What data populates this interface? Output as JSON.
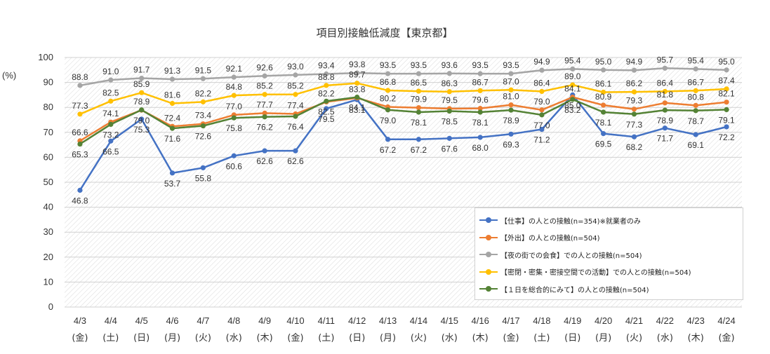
{
  "chart_data": {
    "type": "line",
    "title": "項目別接触低減度【東京都】",
    "ylabel": "(%)",
    "ylim": [
      0,
      100
    ],
    "yticks": [
      0,
      10,
      20,
      30,
      40,
      50,
      60,
      70,
      80,
      90,
      100
    ],
    "categories": [
      "4/3",
      "4/4",
      "4/5",
      "4/6",
      "4/7",
      "4/8",
      "4/9",
      "4/10",
      "4/11",
      "4/12",
      "4/13",
      "4/14",
      "4/15",
      "4/16",
      "4/17",
      "4/18",
      "4/19",
      "4/20",
      "4/21",
      "4/22",
      "4/23",
      "4/24"
    ],
    "weekdays": [
      "(金)",
      "(土)",
      "(日)",
      "(月)",
      "(火)",
      "(水)",
      "(木)",
      "(金)",
      "(土)",
      "(日)",
      "(月)",
      "(火)",
      "(水)",
      "(木)",
      "(金)",
      "(土)",
      "(日)",
      "(月)",
      "(火)",
      "(水)",
      "(木)",
      "(金)"
    ],
    "series": [
      {
        "name": "【仕事】の人との接触(n=354)※就業者のみ",
        "color": "#4472C4",
        "values": [
          46.8,
          66.5,
          75.3,
          53.7,
          55.8,
          60.6,
          62.6,
          62.6,
          79.5,
          83.1,
          67.2,
          67.2,
          67.6,
          68.0,
          69.3,
          71.2,
          85.0,
          69.5,
          68.2,
          71.7,
          69.1,
          72.2
        ]
      },
      {
        "name": "【外出】の人との接触(n=504)",
        "color": "#ED7D31",
        "values": [
          66.6,
          74.1,
          78.9,
          72.4,
          73.4,
          77.0,
          77.7,
          77.4,
          82.2,
          83.8,
          80.2,
          79.9,
          79.5,
          79.6,
          81.0,
          79.0,
          84.1,
          80.9,
          79.3,
          81.8,
          80.8,
          82.1
        ]
      },
      {
        "name": "【夜の街での会食】での人との接触(n=504)",
        "color": "#A5A5A5",
        "values": [
          88.8,
          91.0,
          91.7,
          91.3,
          91.5,
          92.1,
          92.6,
          93.0,
          93.4,
          93.8,
          93.5,
          93.5,
          93.6,
          93.5,
          93.5,
          94.9,
          95.4,
          95.0,
          94.9,
          95.7,
          95.4,
          95.0
        ]
      },
      {
        "name": "【密閉・密集・密接空間での活動】での人との接触(n=504)",
        "color": "#FFC000",
        "values": [
          77.3,
          82.5,
          85.9,
          81.6,
          82.2,
          84.8,
          85.2,
          85.2,
          88.8,
          89.7,
          86.8,
          86.5,
          86.3,
          86.7,
          87.0,
          86.4,
          89.0,
          86.1,
          86.2,
          86.4,
          86.7,
          87.4
        ]
      },
      {
        "name": "【１日を総合的にみて】の人との接触(n=504)",
        "color": "#548235",
        "values": [
          65.3,
          73.2,
          79.0,
          71.6,
          72.6,
          75.8,
          76.2,
          76.4,
          82.5,
          84.1,
          79.0,
          78.1,
          78.5,
          78.1,
          78.9,
          77.0,
          83.2,
          78.1,
          77.3,
          78.9,
          78.7,
          79.1
        ]
      }
    ]
  }
}
